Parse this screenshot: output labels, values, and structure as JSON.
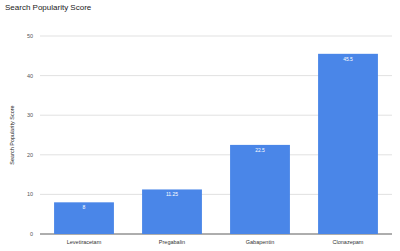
{
  "chart_data": {
    "type": "bar",
    "title": "Search Popularity Score",
    "y_label": "Search Popularity Score",
    "categories": [
      "Levetiracetam",
      "Pregabalin",
      "Gabapentin",
      "Clonazepam"
    ],
    "values": [
      8,
      11.25,
      22.5,
      45.5
    ],
    "color": "#4a86e8",
    "ylim": [
      0,
      50
    ],
    "yticks": [
      0,
      10,
      20,
      30,
      40,
      50
    ],
    "grid": true,
    "data_labels": true
  }
}
